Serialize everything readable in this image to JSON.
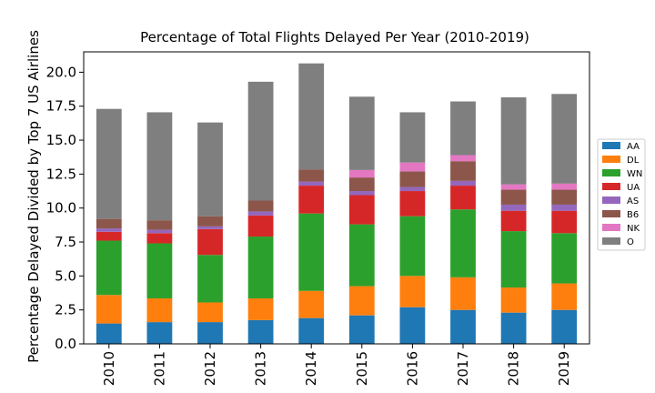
{
  "chart_data": {
    "type": "bar",
    "stacked": true,
    "title": "Percentage of Total Flights Delayed Per Year (2010-2019)",
    "xlabel": "",
    "ylabel": "Percentage Delayed Divided by Top 7 US Airlines",
    "ylim": [
      0,
      21.5
    ],
    "yticks": [
      "0.0",
      "2.5",
      "5.0",
      "7.5",
      "10.0",
      "12.5",
      "15.0",
      "17.5",
      "20.0"
    ],
    "grid": false,
    "legend_position": "center-right",
    "categories": [
      "2010",
      "2011",
      "2012",
      "2013",
      "2014",
      "2015",
      "2016",
      "2017",
      "2018",
      "2019"
    ],
    "series": [
      {
        "name": "AA",
        "color": "#1f77b4",
        "values": [
          1.5,
          1.6,
          1.6,
          1.75,
          1.9,
          2.1,
          2.7,
          2.5,
          2.3,
          2.5
        ]
      },
      {
        "name": "DL",
        "color": "#ff7f0e",
        "values": [
          2.1,
          1.75,
          1.45,
          1.6,
          2.0,
          2.15,
          2.3,
          2.4,
          1.85,
          1.95
        ]
      },
      {
        "name": "WN",
        "color": "#2ca02c",
        "values": [
          4.0,
          4.05,
          3.5,
          4.55,
          5.7,
          4.55,
          4.4,
          5.0,
          4.15,
          3.7
        ]
      },
      {
        "name": "UA",
        "color": "#d62728",
        "values": [
          0.65,
          0.75,
          1.9,
          1.55,
          2.05,
          2.15,
          1.85,
          1.75,
          1.5,
          1.65
        ]
      },
      {
        "name": "AS",
        "color": "#9467bd",
        "values": [
          0.25,
          0.25,
          0.2,
          0.3,
          0.3,
          0.3,
          0.3,
          0.35,
          0.45,
          0.45
        ]
      },
      {
        "name": "B6",
        "color": "#8c564b",
        "values": [
          0.7,
          0.7,
          0.75,
          0.8,
          0.9,
          1.0,
          1.15,
          1.45,
          1.1,
          1.1
        ]
      },
      {
        "name": "NK",
        "color": "#e377c2",
        "values": [
          0,
          0,
          0,
          0,
          0,
          0.55,
          0.65,
          0.45,
          0.4,
          0.45
        ]
      },
      {
        "name": "O",
        "color": "#7f7f7f",
        "values": [
          8.1,
          7.95,
          6.9,
          8.75,
          7.8,
          5.4,
          3.7,
          3.95,
          6.4,
          6.6
        ]
      }
    ]
  }
}
